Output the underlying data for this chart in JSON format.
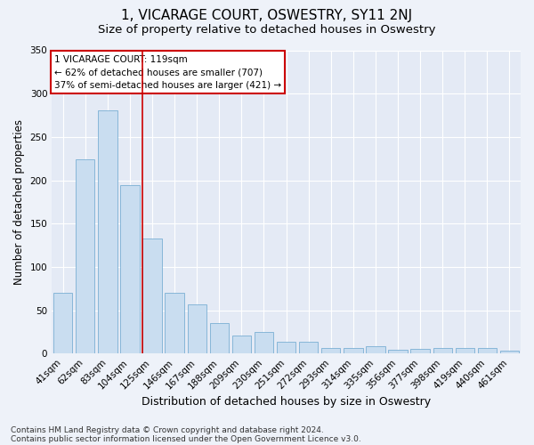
{
  "title": "1, VICARAGE COURT, OSWESTRY, SY11 2NJ",
  "subtitle": "Size of property relative to detached houses in Oswestry",
  "xlabel": "Distribution of detached houses by size in Oswestry",
  "ylabel": "Number of detached properties",
  "categories": [
    "41sqm",
    "62sqm",
    "83sqm",
    "104sqm",
    "125sqm",
    "146sqm",
    "167sqm",
    "188sqm",
    "209sqm",
    "230sqm",
    "251sqm",
    "272sqm",
    "293sqm",
    "314sqm",
    "335sqm",
    "356sqm",
    "377sqm",
    "398sqm",
    "419sqm",
    "440sqm",
    "461sqm"
  ],
  "values": [
    70,
    224,
    281,
    194,
    133,
    70,
    57,
    35,
    21,
    25,
    14,
    14,
    6,
    6,
    8,
    4,
    5,
    6,
    6,
    6,
    3
  ],
  "bar_color": "#c9ddf0",
  "bar_edgecolor": "#7bafd4",
  "vline_color": "#cc0000",
  "vline_pos": 3.57,
  "annotation_title": "1 VICARAGE COURT: 119sqm",
  "annotation_line1": "← 62% of detached houses are smaller (707)",
  "annotation_line2": "37% of semi-detached houses are larger (421) →",
  "annotation_box_facecolor": "#ffffff",
  "annotation_box_edgecolor": "#cc0000",
  "ylim": [
    0,
    350
  ],
  "yticks": [
    0,
    50,
    100,
    150,
    200,
    250,
    300,
    350
  ],
  "bg_color": "#eef2f9",
  "plot_bg_color": "#e4eaf5",
  "title_fontsize": 11,
  "subtitle_fontsize": 9.5,
  "tick_fontsize": 7.5,
  "ylabel_fontsize": 8.5,
  "xlabel_fontsize": 9,
  "footer1": "Contains HM Land Registry data © Crown copyright and database right 2024.",
  "footer2": "Contains public sector information licensed under the Open Government Licence v3.0."
}
